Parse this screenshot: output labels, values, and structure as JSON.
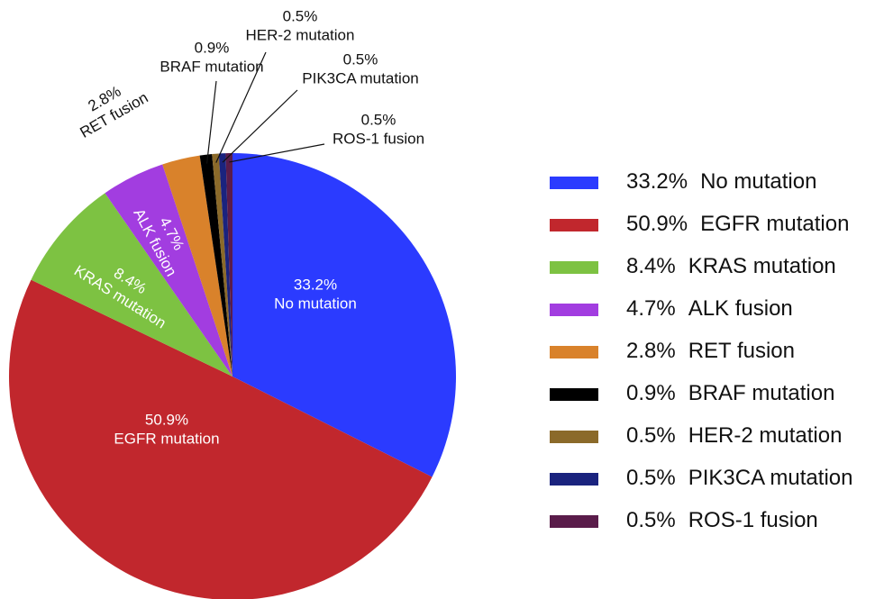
{
  "chart_data": {
    "type": "pie",
    "categories": [
      "No mutation",
      "EGFR mutation",
      "KRAS mutation",
      "ALK fusion",
      "RET fusion",
      "BRAF mutation",
      "HER-2 mutation",
      "PIK3CA mutation",
      "ROS-1 fusion"
    ],
    "values": [
      33.2,
      50.9,
      8.4,
      4.7,
      2.8,
      0.9,
      0.5,
      0.5,
      0.5
    ],
    "value_labels": [
      "33.2%",
      "50.9%",
      "8.4%",
      "4.7%",
      "2.8%",
      "0.9%",
      "0.5%",
      "0.5%",
      "0.5%"
    ],
    "colors": [
      "#2b3bff",
      "#c1272d",
      "#7dc242",
      "#a23de0",
      "#d9822b",
      "#000000",
      "#8b6a2a",
      "#1a237e",
      "#5a1c4a"
    ],
    "legend": "right"
  }
}
